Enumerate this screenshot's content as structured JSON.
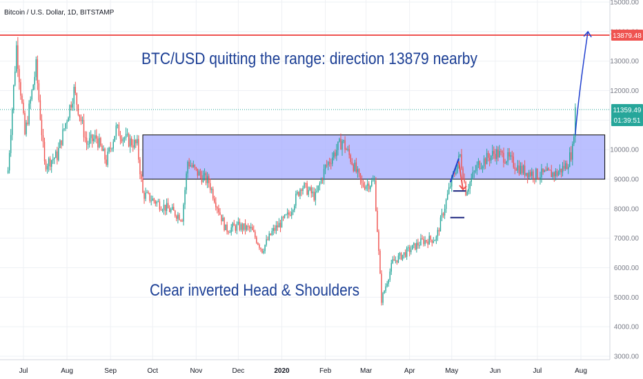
{
  "header": {
    "symbol": "Bitcoin / U.S. Dollar, 1D, BITSTAMP"
  },
  "annotations": {
    "headline": "BTC/USD quitting the range: direction 13879 nearby",
    "pattern": "Clear inverted Head & Shoulders"
  },
  "colors": {
    "up": "#26a69a",
    "down": "#ef5350",
    "range_fill": "#aab0ff",
    "target_line": "#ef5350",
    "arrow": "#1f3fcf",
    "text_blue": "#1c3f95",
    "grid": "#eef0f4"
  },
  "chart_data": {
    "type": "candlestick",
    "title": "Bitcoin / U.S. Dollar, 1D, BITSTAMP",
    "ylim": [
      2800,
      15400
    ],
    "y_ticks": [
      "3000.00",
      "4000.00",
      "5000.00",
      "6000.00",
      "7000.00",
      "8000.00",
      "9000.00",
      "10000.00",
      "11000.00",
      "12000.00",
      "13000.00",
      "14000.00",
      "15000.00"
    ],
    "x_ticks": [
      "Jul",
      "Aug",
      "Sep",
      "Oct",
      "Nov",
      "Dec",
      "2020",
      "Feb",
      "Mar",
      "Apr",
      "May",
      "Jun",
      "Jul",
      "Aug"
    ],
    "price_path": [
      [
        "2019-06-20",
        9300
      ],
      [
        "2019-06-26",
        13500
      ],
      [
        "2019-07-02",
        10500
      ],
      [
        "2019-07-10",
        12800
      ],
      [
        "2019-07-16",
        9500
      ],
      [
        "2019-07-25",
        9800
      ],
      [
        "2019-08-06",
        12000
      ],
      [
        "2019-08-15",
        10200
      ],
      [
        "2019-08-22",
        10400
      ],
      [
        "2019-08-29",
        9600
      ],
      [
        "2019-09-05",
        10700
      ],
      [
        "2019-09-12",
        10350
      ],
      [
        "2019-09-20",
        10150
      ],
      [
        "2019-09-24",
        8500
      ],
      [
        "2019-10-01",
        8300
      ],
      [
        "2019-10-22",
        7700
      ],
      [
        "2019-10-26",
        9600
      ],
      [
        "2019-11-01",
        9250
      ],
      [
        "2019-11-10",
        8900
      ],
      [
        "2019-11-22",
        7300
      ],
      [
        "2019-12-01",
        7400
      ],
      [
        "2019-12-10",
        7300
      ],
      [
        "2019-12-18",
        6600
      ],
      [
        "2019-12-25",
        7200
      ],
      [
        "2020-01-06",
        7800
      ],
      [
        "2020-01-15",
        8800
      ],
      [
        "2020-01-25",
        8400
      ],
      [
        "2020-02-01",
        9400
      ],
      [
        "2020-02-13",
        10300
      ],
      [
        "2020-02-20",
        9600
      ],
      [
        "2020-02-27",
        8800
      ],
      [
        "2020-03-07",
        8900
      ],
      [
        "2020-03-12",
        4900
      ],
      [
        "2020-03-20",
        6200
      ],
      [
        "2020-04-01",
        6600
      ],
      [
        "2020-04-10",
        6900
      ],
      [
        "2020-04-20",
        7000
      ],
      [
        "2020-04-30",
        8800
      ],
      [
        "2020-05-07",
        9800
      ],
      [
        "2020-05-11",
        8600
      ],
      [
        "2020-05-20",
        9500
      ],
      [
        "2020-06-01",
        9900
      ],
      [
        "2020-06-10",
        9700
      ],
      [
        "2020-06-20",
        9300
      ],
      [
        "2020-07-01",
        9150
      ],
      [
        "2020-07-15",
        9200
      ],
      [
        "2020-07-22",
        9500
      ],
      [
        "2020-07-26",
        10000
      ],
      [
        "2020-07-28",
        11359
      ]
    ],
    "range_box": {
      "from": "2019-09-24",
      "to": "2020-08-18",
      "low": 9000,
      "high": 10500
    },
    "target_level": {
      "value": 13879.48,
      "label": "13879.48"
    },
    "last_price": {
      "value": 11359.49,
      "label": "11359.49",
      "countdown": "01:39:51"
    },
    "projection": [
      [
        "2020-07-28",
        10500
      ],
      [
        "2020-08-06",
        14000
      ]
    ],
    "neckline": [
      [
        "2020-04-30",
        8900
      ],
      [
        "2020-05-06",
        9700
      ]
    ],
    "drop_arrow": [
      [
        "2020-05-06",
        9600
      ],
      [
        "2020-05-09",
        8650
      ]
    ],
    "support_lines": [
      {
        "from": "2020-04-30",
        "to": "2020-05-10",
        "value": 7700
      },
      {
        "from": "2020-05-02",
        "to": "2020-05-11",
        "value": 8600
      }
    ]
  }
}
